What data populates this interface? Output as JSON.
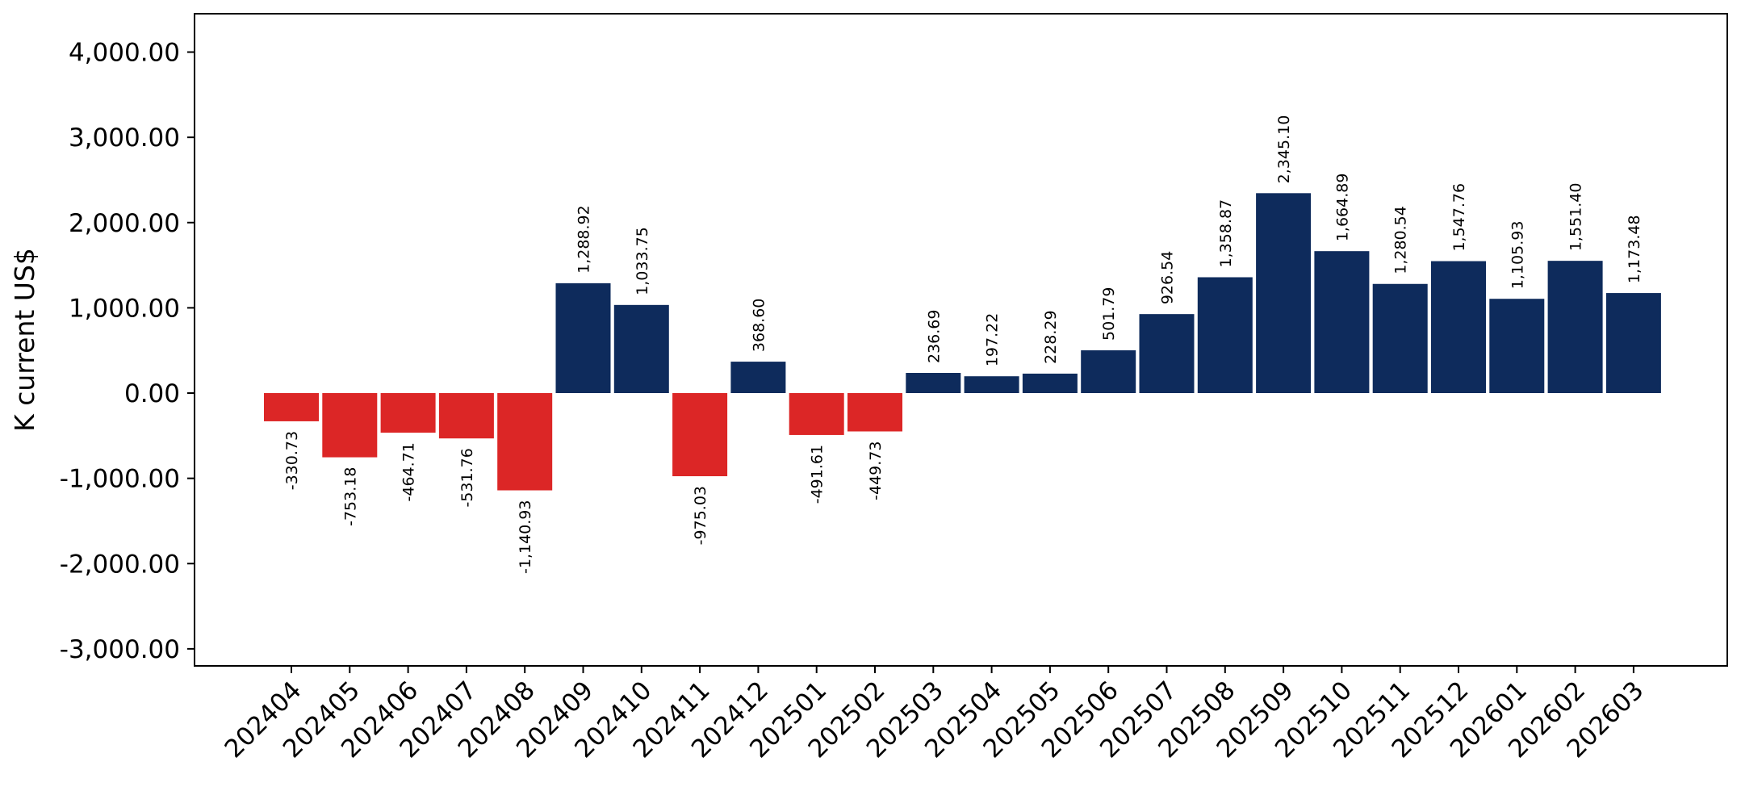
{
  "chart_data": {
    "type": "bar",
    "title": "",
    "xlabel": "",
    "ylabel": "K current US$",
    "ylim": [
      -3200,
      4450
    ],
    "yticks": [
      -3000,
      -2000,
      -1000,
      0,
      1000,
      2000,
      3000,
      4000
    ],
    "ytick_labels": [
      "-3,000.00",
      "-2,000.00",
      "-1,000.00",
      "0.00",
      "1,000.00",
      "2,000.00",
      "3,000.00",
      "4,000.00"
    ],
    "grid": false,
    "legend": "none",
    "colors": {
      "positive": "#0e2b5c",
      "negative": "#dc2626"
    },
    "categories": [
      "202404",
      "202405",
      "202406",
      "202407",
      "202408",
      "202409",
      "202410",
      "202411",
      "202412",
      "202501",
      "202502",
      "202503",
      "202504",
      "202505",
      "202506",
      "202507",
      "202508",
      "202509",
      "202510",
      "202511",
      "202512",
      "202601",
      "202602",
      "202603"
    ],
    "values": [
      -330.73,
      -753.18,
      -464.71,
      -531.76,
      -1140.93,
      1288.92,
      1033.75,
      -975.03,
      368.6,
      -491.61,
      -449.73,
      236.69,
      197.22,
      228.29,
      501.79,
      926.54,
      1358.87,
      2345.1,
      1664.89,
      1280.54,
      1547.76,
      1105.93,
      1551.4,
      1173.48
    ],
    "value_labels": [
      "-330.73",
      "-753.18",
      "-464.71",
      "-531.76",
      "-1,140.93",
      "1,288.92",
      "1,033.75",
      "-975.03",
      "368.60",
      "-491.61",
      "-449.73",
      "236.69",
      "197.22",
      "228.29",
      "501.79",
      "926.54",
      "1,358.87",
      "2,345.10",
      "1,664.89",
      "1,280.54",
      "1,547.76",
      "1,105.93",
      "1,551.40",
      "1,173.48"
    ]
  }
}
